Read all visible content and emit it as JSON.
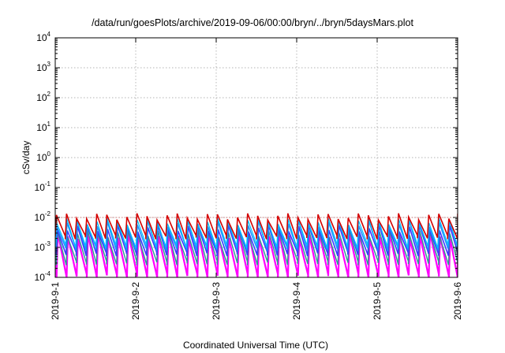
{
  "chart_data": {
    "type": "line",
    "title": "/data/run/goesPlots/archive/2019-09-06/00:00/bryn/../bryn/5daysMars.plot",
    "xlabel": "Coordinated Universal Time (UTC)",
    "ylabel": "cSv/day",
    "yscale": "log",
    "ylim": [
      0.0001,
      10000
    ],
    "xlim": [
      "2019-09-01",
      "2019-09-06"
    ],
    "grid": true,
    "y_ticks": [
      {
        "base": "10",
        "exp": "-4",
        "value": 0.0001
      },
      {
        "base": "10",
        "exp": "-3",
        "value": 0.001
      },
      {
        "base": "10",
        "exp": "-2",
        "value": 0.01
      },
      {
        "base": "10",
        "exp": "-1",
        "value": 0.1
      },
      {
        "base": "10",
        "exp": "0",
        "value": 1
      },
      {
        "base": "10",
        "exp": "1",
        "value": 10
      },
      {
        "base": "10",
        "exp": "2",
        "value": 100
      },
      {
        "base": "10",
        "exp": "3",
        "value": 1000
      },
      {
        "base": "10",
        "exp": "4",
        "value": 10000
      }
    ],
    "x_ticks": [
      "2019-09-01",
      "2019-09-02",
      "2019-09-03",
      "2019-09-04",
      "2019-09-05",
      "2019-09-06"
    ],
    "x_tick_labels": [
      "2019-9-1",
      "2019-9-2",
      "2019-9-3",
      "2019-9-4",
      "2019-9-5",
      "2019-9-6"
    ],
    "reference_line": {
      "value": 0.01,
      "color": "#d06060"
    },
    "sawtooth_period_hours": 3,
    "series": [
      {
        "color": "#ff00ff",
        "peak": 0.0025,
        "trough": 0.00011,
        "phase_hours": 0.4,
        "width": 2.2
      },
      {
        "color": "#2a9d8f",
        "peak": 0.003,
        "trough": 0.0003,
        "phase_hours": 0.3,
        "width": 1.4
      },
      {
        "color": "#3a3aff",
        "peak": 0.0045,
        "trough": 0.0006,
        "phase_hours": 0.25,
        "width": 1.6
      },
      {
        "color": "#1e90ff",
        "peak": 0.0065,
        "trough": 0.0009,
        "phase_hours": 0.15,
        "width": 1.6
      },
      {
        "color": "#00bfff",
        "peak": 0.0075,
        "trough": 0.0011,
        "phase_hours": 0.1,
        "width": 1.2
      },
      {
        "color": "#d40000",
        "peak": 0.011,
        "trough": 0.0022,
        "phase_hours": 0.0,
        "width": 1.6
      }
    ]
  }
}
